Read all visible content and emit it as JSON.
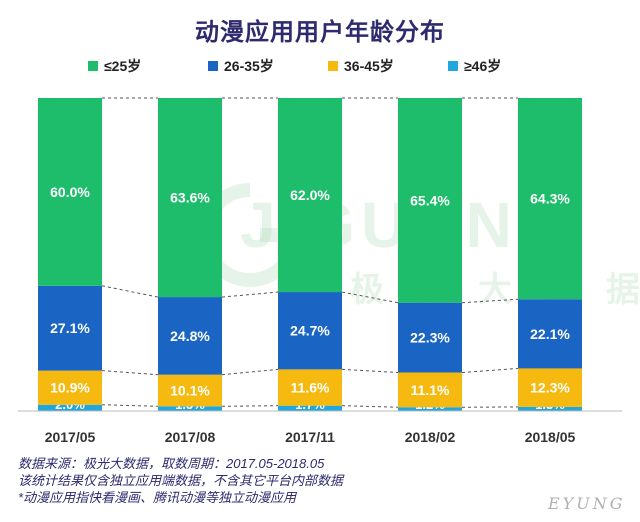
{
  "chart_data": {
    "type": "bar",
    "stacked": true,
    "title": "动漫应用用户年龄分布",
    "categories": [
      "2017/05",
      "2017/08",
      "2017/11",
      "2018/02",
      "2018/05"
    ],
    "series": [
      {
        "name": "≤25岁",
        "color": "#1dbd6b",
        "values": [
          60.0,
          63.6,
          62.0,
          65.4,
          64.3
        ]
      },
      {
        "name": "26-35岁",
        "color": "#1a64c4",
        "values": [
          27.1,
          24.8,
          24.7,
          22.3,
          22.1
        ]
      },
      {
        "name": "36-45岁",
        "color": "#f5b90f",
        "values": [
          10.9,
          10.1,
          11.6,
          11.1,
          12.3
        ]
      },
      {
        "name": "≥46岁",
        "color": "#21a6dd",
        "values": [
          2.0,
          1.5,
          1.7,
          1.2,
          1.3
        ]
      }
    ],
    "ylim": [
      0,
      100
    ],
    "value_format": "%",
    "legend_position": "top"
  },
  "notes": [
    "数据来源：极光大数据，取数周期：2017.05-2018.05",
    "该统计结果仅含独立应用端数据，不含其它平台内部数据",
    "*动漫应用指快看漫画、腾讯动漫等独立动漫应用"
  ],
  "watermark": {
    "text": "JIGUANG",
    "subtext": "极光大数据"
  },
  "corner_mark": "EYUNG"
}
